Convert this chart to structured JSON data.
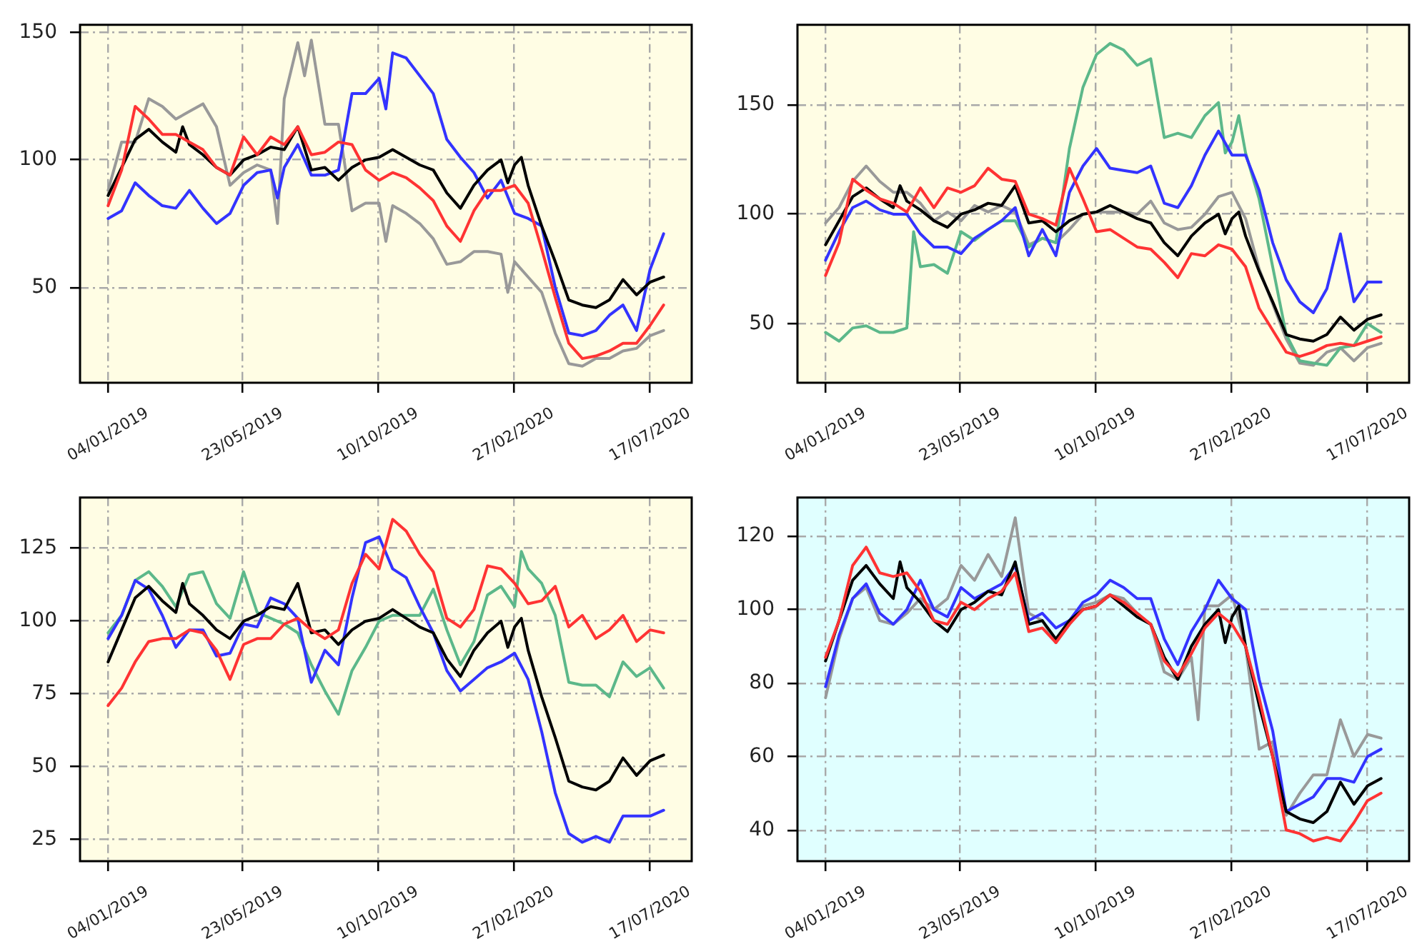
{
  "chart_data": [
    {
      "type": "line",
      "grid": true,
      "x": [
        "2019-01-04",
        "2019-01-18",
        "2019-02-01",
        "2019-02-15",
        "2019-03-01",
        "2019-03-15",
        "2019-03-29",
        "2019-04-12",
        "2019-04-26",
        "2019-05-10",
        "2019-05-24",
        "2019-06-07",
        "2019-06-21",
        "2019-07-05",
        "2019-07-19",
        "2019-08-02",
        "2019-08-16",
        "2019-08-30",
        "2019-09-13",
        "2019-09-27",
        "2019-10-11",
        "2019-10-25",
        "2019-11-08",
        "2019-11-22",
        "2019-12-06",
        "2019-12-20",
        "2020-01-03",
        "2020-01-17",
        "2020-01-31",
        "2020-02-14",
        "2020-02-28",
        "2020-03-13",
        "2020-03-27",
        "2020-04-10",
        "2020-04-24",
        "2020-05-08",
        "2020-05-22",
        "2020-06-05",
        "2020-06-19",
        "2020-07-03",
        "2020-07-17",
        "2020-07-31"
      ],
      "xlim": [
        "2018-12-06",
        "2020-08-29"
      ],
      "xticks": [
        {
          "value": "2019-01-04",
          "label": "04/01/2019"
        },
        {
          "value": "2019-05-23",
          "label": "23/05/2019"
        },
        {
          "value": "2019-10-10",
          "label": "10/10/2019"
        },
        {
          "value": "2020-02-27",
          "label": "27/02/2020"
        },
        {
          "value": "2020-07-17",
          "label": "17/07/2020"
        }
      ],
      "ylim": [
        12.5,
        153
      ],
      "yticks": [
        50,
        100,
        150
      ],
      "series": [
        {
          "color": "#999999",
          "x": [
            "2019-01-04",
            "2019-01-18",
            "2019-02-01",
            "2019-02-15",
            "2019-03-01",
            "2019-03-15",
            "2019-03-29",
            "2019-04-12",
            "2019-04-26",
            "2019-05-10",
            "2019-05-24",
            "2019-06-07",
            "2019-06-21",
            "2019-06-28",
            "2019-07-05",
            "2019-07-19",
            "2019-07-26",
            "2019-08-02",
            "2019-08-16",
            "2019-08-30",
            "2019-09-13",
            "2019-09-27",
            "2019-10-11",
            "2019-10-18",
            "2019-10-25",
            "2019-11-08",
            "2019-11-22",
            "2019-12-06",
            "2019-12-20",
            "2020-01-03",
            "2020-01-17",
            "2020-01-31",
            "2020-02-14",
            "2020-02-21",
            "2020-02-28",
            "2020-03-13",
            "2020-03-27",
            "2020-04-10",
            "2020-04-24",
            "2020-05-08",
            "2020-05-22",
            "2020-06-05",
            "2020-06-19",
            "2020-07-03",
            "2020-07-17",
            "2020-07-31"
          ],
          "values": [
            88,
            107,
            107,
            124,
            121,
            116,
            119,
            122,
            113,
            90,
            95,
            98,
            96,
            75,
            124,
            146,
            133,
            147,
            114,
            114,
            80,
            83,
            83,
            68,
            82,
            79,
            75,
            69,
            59,
            60,
            64,
            64,
            63,
            48,
            60,
            54,
            48,
            32,
            20,
            19,
            22,
            22,
            25,
            26,
            31,
            33
          ]
        },
        {
          "color": "#3333ff",
          "x": [
            "2019-01-04",
            "2019-01-18",
            "2019-02-01",
            "2019-02-15",
            "2019-03-01",
            "2019-03-15",
            "2019-03-29",
            "2019-04-12",
            "2019-04-26",
            "2019-05-10",
            "2019-05-24",
            "2019-06-07",
            "2019-06-21",
            "2019-06-28",
            "2019-07-05",
            "2019-07-19",
            "2019-08-02",
            "2019-08-16",
            "2019-08-30",
            "2019-09-13",
            "2019-09-27",
            "2019-10-11",
            "2019-10-18",
            "2019-10-25",
            "2019-11-08",
            "2019-11-22",
            "2019-12-06",
            "2019-12-20",
            "2020-01-03",
            "2020-01-17",
            "2020-01-31",
            "2020-02-14",
            "2020-02-28",
            "2020-03-13",
            "2020-03-27",
            "2020-04-10",
            "2020-04-24",
            "2020-05-08",
            "2020-05-22",
            "2020-06-05",
            "2020-06-19",
            "2020-07-03",
            "2020-07-17",
            "2020-07-31"
          ],
          "values": [
            77,
            80,
            91,
            86,
            82,
            81,
            88,
            81,
            75,
            79,
            90,
            95,
            96,
            85,
            97,
            106,
            94,
            94,
            96,
            126,
            126,
            132,
            120,
            142,
            140,
            133,
            126,
            108,
            101,
            95,
            85,
            92,
            79,
            77,
            74,
            50,
            32,
            31,
            33,
            39,
            43,
            33,
            57,
            71
          ]
        },
        {
          "color": "#000000",
          "x": [
            "2019-01-04",
            "2019-01-18",
            "2019-02-01",
            "2019-02-15",
            "2019-03-01",
            "2019-03-15",
            "2019-03-22",
            "2019-03-29",
            "2019-04-12",
            "2019-04-26",
            "2019-05-10",
            "2019-05-24",
            "2019-06-07",
            "2019-06-21",
            "2019-07-05",
            "2019-07-19",
            "2019-08-02",
            "2019-08-16",
            "2019-08-30",
            "2019-09-13",
            "2019-09-27",
            "2019-10-11",
            "2019-10-25",
            "2019-11-08",
            "2019-11-22",
            "2019-12-06",
            "2019-12-20",
            "2020-01-03",
            "2020-01-17",
            "2020-01-31",
            "2020-02-14",
            "2020-02-21",
            "2020-02-28",
            "2020-03-06",
            "2020-03-13",
            "2020-03-27",
            "2020-04-10",
            "2020-04-24",
            "2020-05-08",
            "2020-05-22",
            "2020-06-05",
            "2020-06-19",
            "2020-07-03",
            "2020-07-17",
            "2020-07-31"
          ],
          "values": [
            86,
            97,
            108,
            112,
            107,
            103,
            113,
            106,
            102,
            97,
            94,
            100,
            102,
            105,
            104,
            113,
            96,
            97,
            92,
            97,
            100,
            101,
            104,
            101,
            98,
            96,
            87,
            81,
            90,
            96,
            100,
            91,
            98,
            101,
            90,
            74,
            60,
            45,
            43,
            42,
            45,
            53,
            47,
            52,
            54
          ]
        },
        {
          "color": "#ff3333",
          "values": [
            82,
            96,
            121,
            116,
            110,
            110,
            107,
            104,
            97,
            94,
            109,
            102,
            109,
            106,
            113,
            102,
            103,
            107,
            106,
            96,
            92,
            95,
            93,
            89,
            84,
            74,
            68,
            80,
            88,
            88,
            90,
            83,
            65,
            46,
            28,
            22,
            23,
            25,
            28,
            28,
            35,
            43
          ]
        }
      ]
    },
    {
      "type": "line",
      "grid": true,
      "x": [
        "2019-01-04",
        "2019-01-18",
        "2019-02-01",
        "2019-02-15",
        "2019-03-01",
        "2019-03-15",
        "2019-03-29",
        "2019-04-12",
        "2019-04-26",
        "2019-05-10",
        "2019-05-24",
        "2019-06-07",
        "2019-06-21",
        "2019-07-05",
        "2019-07-19",
        "2019-08-02",
        "2019-08-16",
        "2019-08-30",
        "2019-09-13",
        "2019-09-27",
        "2019-10-11",
        "2019-10-25",
        "2019-11-08",
        "2019-11-22",
        "2019-12-06",
        "2019-12-20",
        "2020-01-03",
        "2020-01-17",
        "2020-01-31",
        "2020-02-14",
        "2020-02-28",
        "2020-03-13",
        "2020-03-27",
        "2020-04-10",
        "2020-04-24",
        "2020-05-08",
        "2020-05-22",
        "2020-06-05",
        "2020-06-19",
        "2020-07-03",
        "2020-07-17",
        "2020-07-31"
      ],
      "xlim": [
        "2018-12-06",
        "2020-08-29"
      ],
      "xticks": [
        {
          "value": "2019-01-04",
          "label": "04/01/2019"
        },
        {
          "value": "2019-05-23",
          "label": "23/05/2019"
        },
        {
          "value": "2019-10-10",
          "label": "10/10/2019"
        },
        {
          "value": "2020-02-27",
          "label": "27/02/2020"
        },
        {
          "value": "2020-07-17",
          "label": "17/07/2020"
        }
      ],
      "ylim": [
        23,
        186.5
      ],
      "yticks": [
        50,
        100,
        150
      ],
      "series": [
        {
          "color": "#999999",
          "values": [
            96,
            103,
            115,
            122,
            115,
            110,
            110,
            105,
            97,
            101,
            97,
            104,
            101,
            104,
            101,
            86,
            89,
            87,
            93,
            100,
            101,
            101,
            101,
            100,
            106,
            96,
            93,
            94,
            100,
            108,
            110,
            98,
            75,
            59,
            43,
            32,
            31,
            37,
            39,
            33,
            39,
            41
          ]
        },
        {
          "color": "#5cb88a",
          "x": [
            "2019-01-04",
            "2019-01-18",
            "2019-02-01",
            "2019-02-15",
            "2019-03-01",
            "2019-03-15",
            "2019-03-29",
            "2019-04-05",
            "2019-04-12",
            "2019-04-26",
            "2019-05-10",
            "2019-05-24",
            "2019-06-07",
            "2019-06-21",
            "2019-07-05",
            "2019-07-19",
            "2019-08-02",
            "2019-08-16",
            "2019-08-30",
            "2019-09-13",
            "2019-09-27",
            "2019-10-11",
            "2019-10-25",
            "2019-11-08",
            "2019-11-22",
            "2019-12-06",
            "2019-12-20",
            "2020-01-03",
            "2020-01-17",
            "2020-01-31",
            "2020-02-14",
            "2020-02-21",
            "2020-02-28",
            "2020-03-06",
            "2020-03-13",
            "2020-03-27",
            "2020-04-10",
            "2020-04-24",
            "2020-05-08",
            "2020-05-22",
            "2020-06-05",
            "2020-06-19",
            "2020-07-03",
            "2020-07-17",
            "2020-07-31"
          ],
          "values": [
            46,
            42,
            48,
            49,
            46,
            46,
            48,
            92,
            76,
            77,
            73,
            92,
            88,
            93,
            97,
            97,
            85,
            89,
            87,
            130,
            158,
            173,
            178,
            175,
            168,
            171,
            135,
            137,
            135,
            145,
            151,
            128,
            133,
            145,
            128,
            107,
            76,
            45,
            33,
            32,
            31,
            39,
            40,
            50,
            46
          ]
        },
        {
          "color": "#3333ff",
          "values": [
            79,
            92,
            103,
            106,
            102,
            100,
            100,
            91,
            85,
            85,
            82,
            89,
            93,
            97,
            103,
            81,
            93,
            81,
            110,
            122,
            130,
            121,
            120,
            119,
            122,
            105,
            103,
            113,
            127,
            138,
            127,
            127,
            111,
            87,
            70,
            60,
            55,
            66,
            91,
            60,
            69,
            69
          ]
        },
        {
          "color": "#000000",
          "x": [
            "2019-01-04",
            "2019-01-18",
            "2019-02-01",
            "2019-02-15",
            "2019-03-01",
            "2019-03-15",
            "2019-03-22",
            "2019-03-29",
            "2019-04-12",
            "2019-04-26",
            "2019-05-10",
            "2019-05-24",
            "2019-06-07",
            "2019-06-21",
            "2019-07-05",
            "2019-07-19",
            "2019-08-02",
            "2019-08-16",
            "2019-08-30",
            "2019-09-13",
            "2019-09-27",
            "2019-10-11",
            "2019-10-25",
            "2019-11-08",
            "2019-11-22",
            "2019-12-06",
            "2019-12-20",
            "2020-01-03",
            "2020-01-17",
            "2020-01-31",
            "2020-02-14",
            "2020-02-21",
            "2020-02-28",
            "2020-03-06",
            "2020-03-13",
            "2020-03-27",
            "2020-04-10",
            "2020-04-24",
            "2020-05-08",
            "2020-05-22",
            "2020-06-05",
            "2020-06-19",
            "2020-07-03",
            "2020-07-17",
            "2020-07-31"
          ],
          "values": [
            86,
            97,
            108,
            112,
            107,
            103,
            113,
            106,
            102,
            97,
            94,
            100,
            102,
            105,
            104,
            113,
            96,
            97,
            92,
            97,
            100,
            101,
            104,
            101,
            98,
            96,
            87,
            81,
            90,
            96,
            100,
            91,
            98,
            101,
            90,
            74,
            60,
            45,
            43,
            42,
            45,
            53,
            47,
            52,
            54
          ]
        },
        {
          "color": "#ff3333",
          "values": [
            72,
            87,
            116,
            111,
            107,
            105,
            101,
            112,
            103,
            112,
            110,
            113,
            121,
            116,
            115,
            100,
            98,
            95,
            121,
            107,
            92,
            93,
            89,
            85,
            84,
            78,
            71,
            82,
            81,
            86,
            84,
            76,
            57,
            47,
            37,
            35,
            37,
            40,
            41,
            40,
            42,
            44
          ]
        }
      ]
    },
    {
      "type": "line",
      "grid": true,
      "x": [
        "2019-01-04",
        "2019-01-18",
        "2019-02-01",
        "2019-02-15",
        "2019-03-01",
        "2019-03-15",
        "2019-03-29",
        "2019-04-12",
        "2019-04-26",
        "2019-05-10",
        "2019-05-24",
        "2019-06-07",
        "2019-06-21",
        "2019-07-05",
        "2019-07-19",
        "2019-08-02",
        "2019-08-16",
        "2019-08-30",
        "2019-09-13",
        "2019-09-27",
        "2019-10-11",
        "2019-10-25",
        "2019-11-08",
        "2019-11-22",
        "2019-12-06",
        "2019-12-20",
        "2020-01-03",
        "2020-01-17",
        "2020-01-31",
        "2020-02-14",
        "2020-02-28",
        "2020-03-13",
        "2020-03-27",
        "2020-04-10",
        "2020-04-24",
        "2020-05-08",
        "2020-05-22",
        "2020-06-05",
        "2020-06-19",
        "2020-07-03",
        "2020-07-17",
        "2020-07-31"
      ],
      "xlim": [
        "2018-12-06",
        "2020-08-29"
      ],
      "xticks": [
        {
          "value": "2019-01-04",
          "label": "04/01/2019"
        },
        {
          "value": "2019-05-23",
          "label": "23/05/2019"
        },
        {
          "value": "2019-10-10",
          "label": "10/10/2019"
        },
        {
          "value": "2020-02-27",
          "label": "27/02/2020"
        },
        {
          "value": "2020-07-17",
          "label": "17/07/2020"
        }
      ],
      "ylim": [
        17.5,
        142.5
      ],
      "yticks": [
        25,
        50,
        75,
        100,
        125
      ],
      "series": [
        {
          "color": "#5cb88a",
          "x": [
            "2019-01-04",
            "2019-01-18",
            "2019-02-01",
            "2019-02-15",
            "2019-03-01",
            "2019-03-15",
            "2019-03-29",
            "2019-04-12",
            "2019-04-26",
            "2019-05-10",
            "2019-05-24",
            "2019-06-07",
            "2019-06-21",
            "2019-07-05",
            "2019-07-19",
            "2019-08-02",
            "2019-08-16",
            "2019-08-30",
            "2019-09-13",
            "2019-09-27",
            "2019-10-11",
            "2019-10-25",
            "2019-11-08",
            "2019-11-22",
            "2019-12-06",
            "2019-12-20",
            "2020-01-03",
            "2020-01-17",
            "2020-01-31",
            "2020-02-14",
            "2020-02-28",
            "2020-03-06",
            "2020-03-13",
            "2020-03-27",
            "2020-04-10",
            "2020-04-24",
            "2020-05-08",
            "2020-05-22",
            "2020-06-05",
            "2020-06-19",
            "2020-07-03",
            "2020-07-17",
            "2020-07-31"
          ],
          "values": [
            96,
            102,
            114,
            117,
            112,
            105,
            116,
            117,
            106,
            101,
            117,
            103,
            101,
            99,
            96,
            85,
            76,
            68,
            83,
            91,
            100,
            102,
            102,
            102,
            111,
            97,
            85,
            93,
            109,
            112,
            105,
            124,
            118,
            113,
            102,
            79,
            78,
            78,
            74,
            86,
            81,
            84,
            77
          ]
        },
        {
          "color": "#3333ff",
          "values": [
            94,
            102,
            114,
            111,
            102,
            91,
            97,
            97,
            88,
            89,
            99,
            98,
            108,
            106,
            101,
            79,
            90,
            85,
            108,
            127,
            129,
            118,
            115,
            105,
            96,
            83,
            76,
            80,
            84,
            86,
            89,
            80,
            62,
            41,
            27,
            24,
            26,
            24,
            33,
            33,
            33,
            35
          ]
        },
        {
          "color": "#000000",
          "x": [
            "2019-01-04",
            "2019-01-18",
            "2019-02-01",
            "2019-02-15",
            "2019-03-01",
            "2019-03-15",
            "2019-03-22",
            "2019-03-29",
            "2019-04-12",
            "2019-04-26",
            "2019-05-10",
            "2019-05-24",
            "2019-06-07",
            "2019-06-21",
            "2019-07-05",
            "2019-07-19",
            "2019-08-02",
            "2019-08-16",
            "2019-08-30",
            "2019-09-13",
            "2019-09-27",
            "2019-10-11",
            "2019-10-25",
            "2019-11-08",
            "2019-11-22",
            "2019-12-06",
            "2019-12-20",
            "2020-01-03",
            "2020-01-17",
            "2020-01-31",
            "2020-02-14",
            "2020-02-21",
            "2020-02-28",
            "2020-03-06",
            "2020-03-13",
            "2020-03-27",
            "2020-04-10",
            "2020-04-24",
            "2020-05-08",
            "2020-05-22",
            "2020-06-05",
            "2020-06-19",
            "2020-07-03",
            "2020-07-17",
            "2020-07-31"
          ],
          "values": [
            86,
            97,
            108,
            112,
            107,
            103,
            113,
            106,
            102,
            97,
            94,
            100,
            102,
            105,
            104,
            113,
            96,
            97,
            92,
            97,
            100,
            101,
            104,
            101,
            98,
            96,
            87,
            81,
            90,
            96,
            100,
            91,
            98,
            101,
            90,
            74,
            60,
            45,
            43,
            42,
            45,
            53,
            47,
            52,
            54
          ]
        },
        {
          "color": "#ff3333",
          "values": [
            71,
            77,
            86,
            93,
            94,
            94,
            97,
            96,
            90,
            80,
            92,
            94,
            94,
            99,
            101,
            97,
            94,
            97,
            113,
            123,
            118,
            135,
            131,
            123,
            117,
            101,
            98,
            104,
            119,
            118,
            113,
            106,
            107,
            112,
            98,
            102,
            94,
            97,
            102,
            93,
            97,
            96
          ]
        }
      ]
    },
    {
      "type": "line",
      "grid": true,
      "x": [
        "2019-01-04",
        "2019-01-18",
        "2019-02-01",
        "2019-02-15",
        "2019-03-01",
        "2019-03-15",
        "2019-03-29",
        "2019-04-12",
        "2019-04-26",
        "2019-05-10",
        "2019-05-24",
        "2019-06-07",
        "2019-06-21",
        "2019-07-05",
        "2019-07-19",
        "2019-08-02",
        "2019-08-16",
        "2019-08-30",
        "2019-09-13",
        "2019-09-27",
        "2019-10-11",
        "2019-10-25",
        "2019-11-08",
        "2019-11-22",
        "2019-12-06",
        "2019-12-20",
        "2020-01-03",
        "2020-01-17",
        "2020-01-31",
        "2020-02-14",
        "2020-02-28",
        "2020-03-13",
        "2020-03-27",
        "2020-04-10",
        "2020-04-24",
        "2020-05-08",
        "2020-05-22",
        "2020-06-05",
        "2020-06-19",
        "2020-07-03",
        "2020-07-17",
        "2020-07-31"
      ],
      "xlim": [
        "2018-12-06",
        "2020-08-29"
      ],
      "xticks": [
        {
          "value": "2019-01-04",
          "label": "04/01/2019"
        },
        {
          "value": "2019-05-23",
          "label": "23/05/2019"
        },
        {
          "value": "2019-10-10",
          "label": "10/10/2019"
        },
        {
          "value": "2020-02-27",
          "label": "27/02/2020"
        },
        {
          "value": "2020-07-17",
          "label": "17/07/2020"
        }
      ],
      "ylim": [
        31.5,
        130.5
      ],
      "yticks": [
        40,
        60,
        80,
        100,
        120
      ],
      "series": [
        {
          "color": "#999999",
          "x": [
            "2019-01-04",
            "2019-01-18",
            "2019-02-01",
            "2019-02-15",
            "2019-03-01",
            "2019-03-15",
            "2019-03-29",
            "2019-04-12",
            "2019-04-26",
            "2019-05-10",
            "2019-05-24",
            "2019-06-07",
            "2019-06-21",
            "2019-07-05",
            "2019-07-19",
            "2019-08-02",
            "2019-08-16",
            "2019-08-30",
            "2019-09-13",
            "2019-09-27",
            "2019-10-11",
            "2019-10-25",
            "2019-11-08",
            "2019-11-22",
            "2019-12-06",
            "2019-12-20",
            "2020-01-03",
            "2020-01-17",
            "2020-01-24",
            "2020-01-31",
            "2020-02-14",
            "2020-02-28",
            "2020-03-13",
            "2020-03-27",
            "2020-04-10",
            "2020-04-24",
            "2020-05-08",
            "2020-05-22",
            "2020-06-05",
            "2020-06-19",
            "2020-07-03",
            "2020-07-17",
            "2020-07-31"
          ],
          "values": [
            76,
            92,
            103,
            106,
            97,
            96,
            99,
            103,
            100,
            103,
            112,
            108,
            115,
            109,
            125,
            99,
            97,
            91,
            96,
            101,
            102,
            104,
            103,
            99,
            96,
            83,
            81,
            87,
            70,
            101,
            101,
            104,
            90,
            62,
            64,
            44,
            50,
            55,
            55,
            70,
            60,
            66,
            65
          ]
        },
        {
          "color": "#3333ff",
          "values": [
            79,
            93,
            103,
            107,
            99,
            96,
            100,
            108,
            100,
            98,
            106,
            103,
            105,
            107,
            112,
            97,
            99,
            95,
            97,
            102,
            104,
            108,
            106,
            103,
            103,
            92,
            85,
            94,
            100,
            108,
            103,
            100,
            81,
            67,
            45,
            47,
            49,
            54,
            54,
            53,
            60,
            62
          ]
        },
        {
          "color": "#000000",
          "x": [
            "2019-01-04",
            "2019-01-18",
            "2019-02-01",
            "2019-02-15",
            "2019-03-01",
            "2019-03-15",
            "2019-03-22",
            "2019-03-29",
            "2019-04-12",
            "2019-04-26",
            "2019-05-10",
            "2019-05-24",
            "2019-06-07",
            "2019-06-21",
            "2019-07-05",
            "2019-07-19",
            "2019-08-02",
            "2019-08-16",
            "2019-08-30",
            "2019-09-13",
            "2019-09-27",
            "2019-10-11",
            "2019-10-25",
            "2019-11-08",
            "2019-11-22",
            "2019-12-06",
            "2019-12-20",
            "2020-01-03",
            "2020-01-17",
            "2020-01-31",
            "2020-02-14",
            "2020-02-21",
            "2020-02-28",
            "2020-03-06",
            "2020-03-13",
            "2020-03-27",
            "2020-04-10",
            "2020-04-24",
            "2020-05-08",
            "2020-05-22",
            "2020-06-05",
            "2020-06-19",
            "2020-07-03",
            "2020-07-17",
            "2020-07-31"
          ],
          "values": [
            86,
            97,
            108,
            112,
            107,
            103,
            113,
            106,
            102,
            97,
            94,
            100,
            102,
            105,
            104,
            113,
            96,
            97,
            92,
            97,
            100,
            101,
            104,
            101,
            98,
            96,
            87,
            81,
            90,
            96,
            100,
            91,
            98,
            101,
            90,
            74,
            60,
            45,
            43,
            42,
            45,
            53,
            47,
            52,
            54
          ]
        },
        {
          "color": "#ff3333",
          "values": [
            87,
            97,
            112,
            117,
            110,
            109,
            110,
            105,
            97,
            96,
            102,
            100,
            103,
            105,
            110,
            94,
            95,
            91,
            96,
            100,
            101,
            104,
            102,
            99,
            96,
            86,
            82,
            88,
            95,
            99,
            96,
            90,
            76,
            60,
            40,
            39,
            37,
            38,
            37,
            42,
            48,
            50
          ]
        }
      ]
    }
  ]
}
